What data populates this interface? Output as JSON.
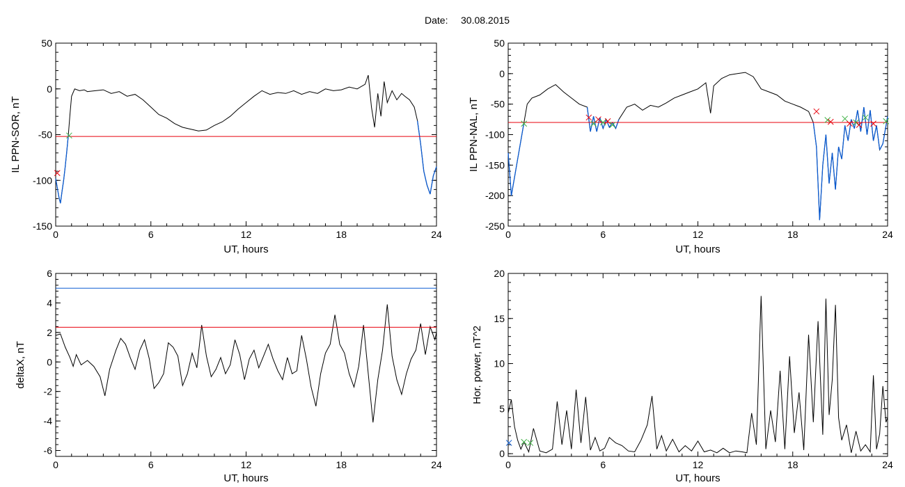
{
  "figure": {
    "title_label": "Date:",
    "title_date": "30.08.2015"
  },
  "chart_data": [
    {
      "id": "sor",
      "type": "line",
      "xlabel": "UT, hours",
      "ylabel": "IL PPN-SOR, nT",
      "xlim": [
        0,
        24
      ],
      "ylim": [
        -150,
        50
      ],
      "xticks": [
        0,
        6,
        12,
        18,
        24
      ],
      "yticks": [
        -150,
        -100,
        -50,
        0,
        50
      ],
      "grid": false,
      "hlines": [
        {
          "y": -52,
          "color": "#e8000b"
        }
      ],
      "highlight": {
        "color": "#0b5bd1",
        "below": -52
      },
      "markers": [
        {
          "x": 0.85,
          "y": -51,
          "symbol": "x",
          "color": "#3cb043"
        },
        {
          "x": 0.1,
          "y": -92,
          "symbol": "x",
          "color": "#e8000b"
        }
      ],
      "series": [
        {
          "x": [
            0,
            0.1,
            0.2,
            0.3,
            0.4,
            0.5,
            0.6,
            0.7,
            0.8,
            0.9,
            1.0,
            1.2,
            1.5,
            1.8,
            2.0,
            2.5,
            3.0,
            3.5,
            4.0,
            4.5,
            5.0,
            5.5,
            6.0,
            6.5,
            7.0,
            7.5,
            8.0,
            8.5,
            9.0,
            9.5,
            10.0,
            10.5,
            11.0,
            11.5,
            12.0,
            12.5,
            13.0,
            13.5,
            14.0,
            14.5,
            15.0,
            15.5,
            16.0,
            16.5,
            17.0,
            17.5,
            18.0,
            18.5,
            19.0,
            19.5,
            19.7,
            19.9,
            20.1,
            20.3,
            20.5,
            20.7,
            20.9,
            21.2,
            21.5,
            21.8,
            22.0,
            22.3,
            22.6,
            22.8,
            23.0,
            23.2,
            23.4,
            23.6,
            23.8,
            24.0
          ],
          "y": [
            -98,
            -108,
            -118,
            -125,
            -112,
            -100,
            -85,
            -68,
            -50,
            -28,
            -8,
            0,
            -2,
            -1,
            -3,
            -2,
            -1,
            -5,
            -3,
            -8,
            -6,
            -12,
            -20,
            -28,
            -32,
            -38,
            -42,
            -44,
            -46,
            -45,
            -40,
            -36,
            -30,
            -22,
            -15,
            -8,
            -2,
            -6,
            -4,
            -5,
            -2,
            -6,
            -3,
            -5,
            0,
            -2,
            -1,
            2,
            0,
            5,
            15,
            -20,
            -42,
            -5,
            -30,
            8,
            -15,
            -2,
            -12,
            -5,
            -8,
            -12,
            -20,
            -35,
            -60,
            -90,
            -105,
            -115,
            -95,
            -85
          ]
        }
      ]
    },
    {
      "id": "nal",
      "type": "line",
      "xlabel": "UT, hours",
      "ylabel": "IL PPN-NAL, nT",
      "xlim": [
        0,
        24
      ],
      "ylim": [
        -250,
        50
      ],
      "xticks": [
        0,
        6,
        12,
        18,
        24
      ],
      "yticks": [
        -250,
        -200,
        -150,
        -100,
        -50,
        0,
        50
      ],
      "grid": false,
      "hlines": [
        {
          "y": -80,
          "color": "#e8000b"
        }
      ],
      "highlight": {
        "color": "#0b5bd1",
        "below": -80
      },
      "markers": [
        {
          "x": 1.0,
          "y": -82,
          "symbol": "x",
          "color": "#3cb043"
        },
        {
          "x": 5.1,
          "y": -72,
          "symbol": "x",
          "color": "#e8000b"
        },
        {
          "x": 5.4,
          "y": -82,
          "symbol": "x",
          "color": "#3cb043"
        },
        {
          "x": 5.7,
          "y": -75,
          "symbol": "x",
          "color": "#e8000b"
        },
        {
          "x": 6.0,
          "y": -80,
          "symbol": "x",
          "color": "#3cb043"
        },
        {
          "x": 6.3,
          "y": -78,
          "symbol": "x",
          "color": "#e8000b"
        },
        {
          "x": 6.6,
          "y": -84,
          "symbol": "x",
          "color": "#3cb043"
        },
        {
          "x": 19.5,
          "y": -62,
          "symbol": "x",
          "color": "#e8000b"
        },
        {
          "x": 20.2,
          "y": -76,
          "symbol": "x",
          "color": "#3cb043"
        },
        {
          "x": 20.4,
          "y": -79,
          "symbol": "x",
          "color": "#e8000b"
        },
        {
          "x": 21.3,
          "y": -74,
          "symbol": "x",
          "color": "#3cb043"
        },
        {
          "x": 21.6,
          "y": -82,
          "symbol": "x",
          "color": "#e8000b"
        },
        {
          "x": 22.0,
          "y": -80,
          "symbol": "x",
          "color": "#3cb043"
        },
        {
          "x": 22.2,
          "y": -84,
          "symbol": "x",
          "color": "#e8000b"
        },
        {
          "x": 22.6,
          "y": -72,
          "symbol": "x",
          "color": "#3cb043"
        },
        {
          "x": 23.1,
          "y": -82,
          "symbol": "x",
          "color": "#e8000b"
        },
        {
          "x": 23.9,
          "y": -78,
          "symbol": "x",
          "color": "#3cb043"
        }
      ],
      "series": [
        {
          "x": [
            0,
            0.2,
            0.4,
            0.6,
            0.8,
            1.0,
            1.2,
            1.5,
            2.0,
            2.5,
            3.0,
            3.5,
            4.0,
            4.5,
            5.0,
            5.2,
            5.4,
            5.6,
            5.8,
            6.0,
            6.2,
            6.4,
            6.6,
            6.8,
            7.0,
            7.5,
            8.0,
            8.5,
            9.0,
            9.5,
            10.0,
            10.5,
            11.0,
            11.5,
            12.0,
            12.5,
            12.8,
            13.0,
            13.5,
            14.0,
            14.5,
            15.0,
            15.5,
            16.0,
            16.5,
            17.0,
            17.5,
            18.0,
            18.5,
            19.0,
            19.3,
            19.5,
            19.7,
            19.9,
            20.1,
            20.3,
            20.5,
            20.7,
            20.9,
            21.1,
            21.3,
            21.5,
            21.7,
            21.9,
            22.1,
            22.3,
            22.5,
            22.7,
            22.9,
            23.1,
            23.3,
            23.5,
            23.7,
            24.0
          ],
          "y": [
            -130,
            -200,
            -170,
            -140,
            -110,
            -80,
            -50,
            -40,
            -35,
            -25,
            -18,
            -30,
            -40,
            -50,
            -55,
            -95,
            -70,
            -95,
            -72,
            -90,
            -75,
            -88,
            -80,
            -90,
            -75,
            -55,
            -50,
            -60,
            -52,
            -55,
            -48,
            -40,
            -35,
            -30,
            -25,
            -15,
            -65,
            -20,
            -8,
            -2,
            0,
            2,
            -5,
            -25,
            -30,
            -35,
            -45,
            -50,
            -55,
            -62,
            -80,
            -120,
            -240,
            -150,
            -100,
            -180,
            -130,
            -190,
            -120,
            -140,
            -85,
            -110,
            -75,
            -90,
            -60,
            -95,
            -55,
            -100,
            -60,
            -110,
            -85,
            -125,
            -115,
            -70
          ]
        }
      ]
    },
    {
      "id": "deltax",
      "type": "line",
      "xlabel": "UT, hours",
      "ylabel": "deltaX, nT",
      "xlim": [
        0,
        24
      ],
      "ylim": [
        -6.4,
        6
      ],
      "xticks": [
        0,
        6,
        12,
        18,
        24
      ],
      "yticks": [
        -6,
        -4,
        -2,
        0,
        2,
        4,
        6
      ],
      "grid": false,
      "hlines": [
        {
          "y": 5.0,
          "color": "#0b5bd1"
        },
        {
          "y": 2.35,
          "color": "#e8000b"
        }
      ],
      "highlight": null,
      "markers": [],
      "series": [
        {
          "x": [
            0,
            0.3,
            0.6,
            0.9,
            1.1,
            1.3,
            1.6,
            2.0,
            2.4,
            2.8,
            3.1,
            3.4,
            3.8,
            4.1,
            4.4,
            4.7,
            5.0,
            5.3,
            5.6,
            5.9,
            6.2,
            6.5,
            6.8,
            7.1,
            7.4,
            7.7,
            8.0,
            8.3,
            8.6,
            8.9,
            9.2,
            9.5,
            9.8,
            10.1,
            10.4,
            10.7,
            11.0,
            11.3,
            11.6,
            11.9,
            12.2,
            12.5,
            12.8,
            13.1,
            13.4,
            13.7,
            14.0,
            14.3,
            14.6,
            14.9,
            15.2,
            15.5,
            15.8,
            16.1,
            16.4,
            16.7,
            17.0,
            17.3,
            17.6,
            17.9,
            18.2,
            18.5,
            18.8,
            19.1,
            19.4,
            19.7,
            20.0,
            20.3,
            20.6,
            20.9,
            21.2,
            21.5,
            21.8,
            22.1,
            22.4,
            22.7,
            23.0,
            23.3,
            23.6,
            23.9,
            24.0
          ],
          "y": [
            1.8,
            1.9,
            1.0,
            0.3,
            -0.3,
            0.5,
            -0.2,
            0.1,
            -0.3,
            -1.0,
            -2.3,
            -0.5,
            0.8,
            1.6,
            1.2,
            0.3,
            -0.5,
            0.8,
            1.5,
            0.2,
            -1.8,
            -1.4,
            -0.8,
            1.3,
            1.0,
            0.4,
            -1.6,
            -0.8,
            0.6,
            -0.4,
            2.5,
            0.4,
            -1.0,
            -0.5,
            0.3,
            -0.8,
            -0.2,
            1.5,
            0.5,
            -1.2,
            0.2,
            0.8,
            -0.4,
            0.4,
            1.2,
            0.2,
            -0.6,
            -1.2,
            0.3,
            -0.8,
            -0.6,
            1.8,
            0.2,
            -1.7,
            -3.0,
            -0.8,
            0.6,
            1.2,
            3.2,
            1.2,
            0.6,
            -0.8,
            -1.7,
            -0.3,
            2.5,
            -0.8,
            -4.1,
            -1.2,
            0.8,
            3.9,
            0.4,
            -1.2,
            -2.2,
            -0.8,
            0.2,
            0.8,
            2.6,
            0.5,
            2.4,
            1.5,
            2.0
          ]
        }
      ]
    },
    {
      "id": "power",
      "type": "line",
      "xlabel": "UT, hours",
      "ylabel": "Hor. power, nT^2",
      "xlim": [
        0,
        24
      ],
      "ylim": [
        -0.3,
        20
      ],
      "xticks": [
        0,
        6,
        12,
        18,
        24
      ],
      "yticks": [
        0,
        5,
        10,
        15,
        20
      ],
      "grid": false,
      "hlines": [],
      "highlight": null,
      "markers": [
        {
          "x": 0.05,
          "y": 1.2,
          "symbol": "x",
          "color": "#0b5bd1"
        },
        {
          "x": 1.0,
          "y": 1.3,
          "symbol": "x",
          "color": "#3cb043"
        },
        {
          "x": 1.4,
          "y": 1.2,
          "symbol": "x",
          "color": "#3cb043"
        }
      ],
      "series": [
        {
          "x": [
            0,
            0.2,
            0.4,
            0.6,
            0.8,
            1.0,
            1.3,
            1.6,
            2.0,
            2.4,
            2.8,
            3.1,
            3.4,
            3.7,
            4.0,
            4.3,
            4.6,
            4.9,
            5.2,
            5.5,
            5.8,
            6.1,
            6.4,
            6.8,
            7.2,
            7.6,
            8.0,
            8.4,
            8.8,
            9.1,
            9.4,
            9.7,
            10.0,
            10.4,
            10.8,
            11.2,
            11.6,
            12.0,
            12.4,
            12.8,
            13.2,
            13.6,
            14.0,
            14.4,
            14.8,
            15.1,
            15.4,
            15.7,
            16.0,
            16.3,
            16.6,
            16.9,
            17.2,
            17.5,
            17.8,
            18.1,
            18.4,
            18.7,
            19.0,
            19.3,
            19.6,
            19.9,
            20.1,
            20.3,
            20.5,
            20.7,
            20.9,
            21.1,
            21.4,
            21.7,
            22.0,
            22.3,
            22.6,
            22.9,
            23.1,
            23.3,
            23.5,
            23.7,
            23.9,
            24.0
          ],
          "y": [
            4.5,
            6.0,
            3.0,
            1.5,
            0.5,
            1.3,
            0.2,
            2.8,
            0.3,
            0.1,
            0.5,
            5.8,
            1.0,
            4.8,
            0.5,
            7.1,
            1.2,
            6.3,
            0.4,
            1.8,
            0.3,
            0.6,
            1.8,
            1.2,
            0.9,
            0.3,
            0.2,
            1.5,
            3.2,
            6.4,
            0.5,
            2.0,
            0.3,
            1.6,
            0.2,
            0.9,
            0.3,
            1.4,
            0.2,
            0.4,
            0.1,
            0.6,
            0.1,
            0.3,
            0.2,
            0.1,
            4.5,
            1.0,
            17.5,
            0.5,
            4.8,
            1.3,
            9.2,
            0.5,
            10.8,
            2.3,
            6.8,
            0.4,
            13.2,
            3.5,
            14.7,
            2.1,
            17.2,
            4.3,
            8.2,
            16.5,
            4.0,
            1.5,
            3.2,
            0.1,
            2.5,
            0.3,
            1.0,
            0.2,
            8.7,
            0.5,
            2.2,
            7.5,
            3.5,
            4.0
          ]
        }
      ]
    }
  ]
}
